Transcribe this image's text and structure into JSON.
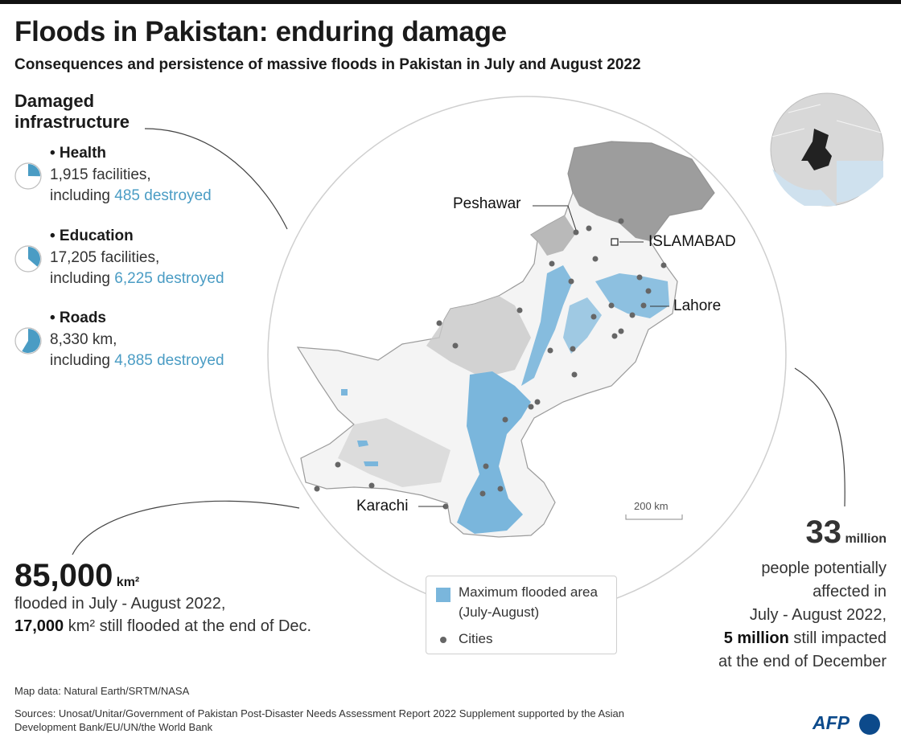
{
  "title": "Floods in Pakistan: enduring damage",
  "subtitle": "Consequences and persistence of massive floods in Pakistan in July and August 2022",
  "infrastructure": {
    "title": "Damaged infrastructure",
    "items": [
      {
        "label": "• Health",
        "total": "1,915",
        "total_suffix": " facilities,",
        "prefix": "including ",
        "destroyed": "485 destroyed",
        "destroyed_share": 0.253
      },
      {
        "label": "• Education",
        "total": "17,205",
        "total_suffix": " facilities,",
        "prefix": "including ",
        "destroyed": "6,225 destroyed",
        "destroyed_share": 0.362
      },
      {
        "label": "• Roads",
        "total": "8,330",
        "total_suffix": " km,",
        "prefix": "including ",
        "destroyed": "4,885 destroyed",
        "destroyed_share": 0.586
      }
    ]
  },
  "map": {
    "cities": {
      "peshawar": "Peshawar",
      "islamabad": "ISLAMABAD",
      "lahore": "Lahore",
      "karachi": "Karachi"
    },
    "scale": "200 km",
    "flood_color": "#7ab6dc",
    "terrain_color": "#a9a9a9"
  },
  "stats_left": {
    "value": "85,000",
    "unit": "km²",
    "line1": "flooded in July - August 2022,",
    "still_value": "17,000",
    "still_text": " km² still flooded at the end of Dec."
  },
  "stats_right": {
    "value": "33",
    "unit": " million",
    "line1": "people potentially",
    "line2": "affected in",
    "line3": "July - August 2022,",
    "still_value": "5 million",
    "still_text": " still impacted",
    "line5": "at the end of December"
  },
  "legend": {
    "flood_label_1": "Maximum flooded area",
    "flood_label_2": "(July-August)",
    "cities_label": "Cities"
  },
  "footer": {
    "map_data": "Map data: Natural Earth/SRTM/NASA",
    "sources": "Sources: Unosat/Unitar/Government of Pakistan Post-Disaster Needs Assessment Report 2022 Supplement supported by the Asian Development Bank/EU/UN/the World Bank"
  },
  "logo_text": "AFP",
  "colors": {
    "accent": "#4a9cc4",
    "flood": "#7ab6dc",
    "afp_blue": "#0c4a8b"
  }
}
